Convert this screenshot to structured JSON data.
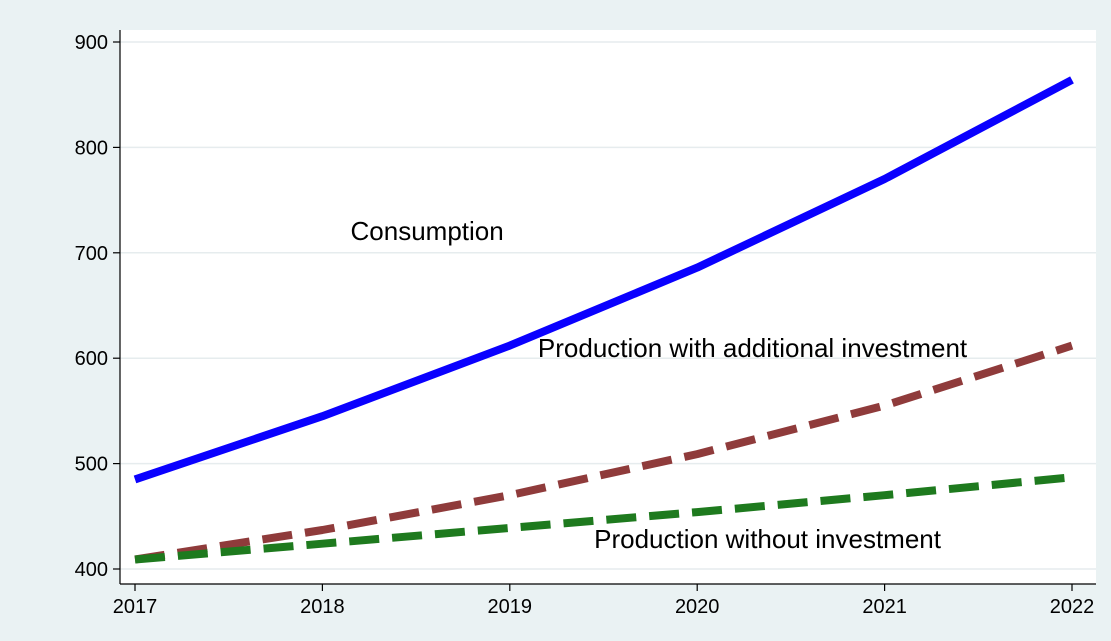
{
  "chart_data": {
    "type": "line",
    "x": [
      2017,
      2018,
      2019,
      2020,
      2021,
      2022
    ],
    "xlim": [
      2017,
      2022
    ],
    "ylim": [
      400,
      900
    ],
    "y_ticks": [
      400,
      500,
      600,
      700,
      800,
      900
    ],
    "x_ticks": [
      2017,
      2018,
      2019,
      2020,
      2021,
      2022
    ],
    "grid": true,
    "legend": "none",
    "series": [
      {
        "name": "Consumption",
        "values": [
          485,
          545,
          612,
          686,
          770,
          864
        ],
        "color": "#0a00ff",
        "style": "solid"
      },
      {
        "name": "Production with additional investment",
        "values": [
          409,
          437,
          470,
          509,
          555,
          612
        ],
        "color": "#8f3b3b",
        "style": "dashed"
      },
      {
        "name": "Production without investment",
        "values": [
          409,
          424,
          439,
          454,
          470,
          487
        ],
        "color": "#1e7a1e",
        "style": "dashed"
      }
    ],
    "annotations": [
      {
        "text": "Consumption",
        "x": 2018.15,
        "y": 712
      },
      {
        "text": "Production with additional investment",
        "x": 2019.15,
        "y": 601
      },
      {
        "text": "Production without investment",
        "x": 2019.45,
        "y": 420
      }
    ]
  }
}
